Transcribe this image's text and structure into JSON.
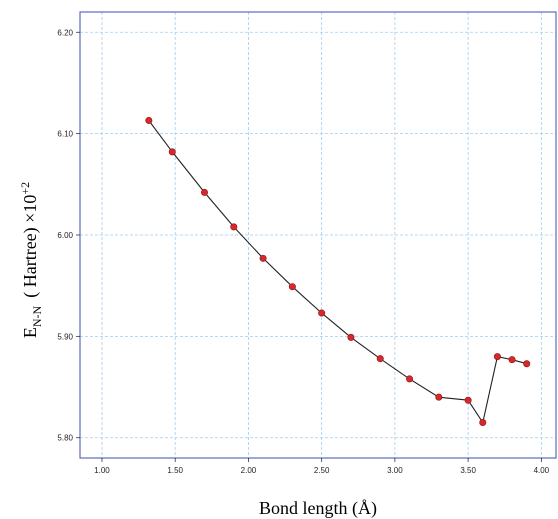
{
  "chart_data": {
    "type": "line",
    "title": "",
    "xlabel": "Bond length (Å)",
    "ylabel": {
      "main": "E",
      "subscript": "N-N",
      "unit": "( Hartree) ×10",
      "exponent": "+2"
    },
    "xlim": [
      0.85,
      4.1
    ],
    "ylim": [
      5.78,
      6.22
    ],
    "x_ticks": [
      1.0,
      1.5,
      2.0,
      2.5,
      3.0,
      3.5,
      4.0
    ],
    "x_tick_labels": [
      "1.00",
      "1.50",
      "2.00",
      "2.50",
      "3.00",
      "3.50",
      "4.00"
    ],
    "y_ticks": [
      5.8,
      5.9,
      6.0,
      6.1,
      6.2
    ],
    "y_tick_labels": [
      "5.80",
      "5.90",
      "6.00",
      "6.10",
      "6.20"
    ],
    "grid": true,
    "legend": "none",
    "colors": {
      "axis": "#5b6bbf",
      "grid": "#9fcdf0",
      "line": "#222222",
      "marker": "#d8282b"
    },
    "series": [
      {
        "x": [
          1.32,
          1.48,
          1.7,
          1.9,
          2.1,
          2.3,
          2.5,
          2.7,
          2.9,
          3.1,
          3.3,
          3.5,
          3.6,
          3.7,
          3.8,
          3.9
        ],
        "y": [
          6.113,
          6.082,
          6.042,
          6.008,
          5.977,
          5.949,
          5.923,
          5.899,
          5.878,
          5.858,
          5.84,
          5.837,
          5.815,
          5.88,
          5.877,
          5.873
        ]
      }
    ]
  }
}
